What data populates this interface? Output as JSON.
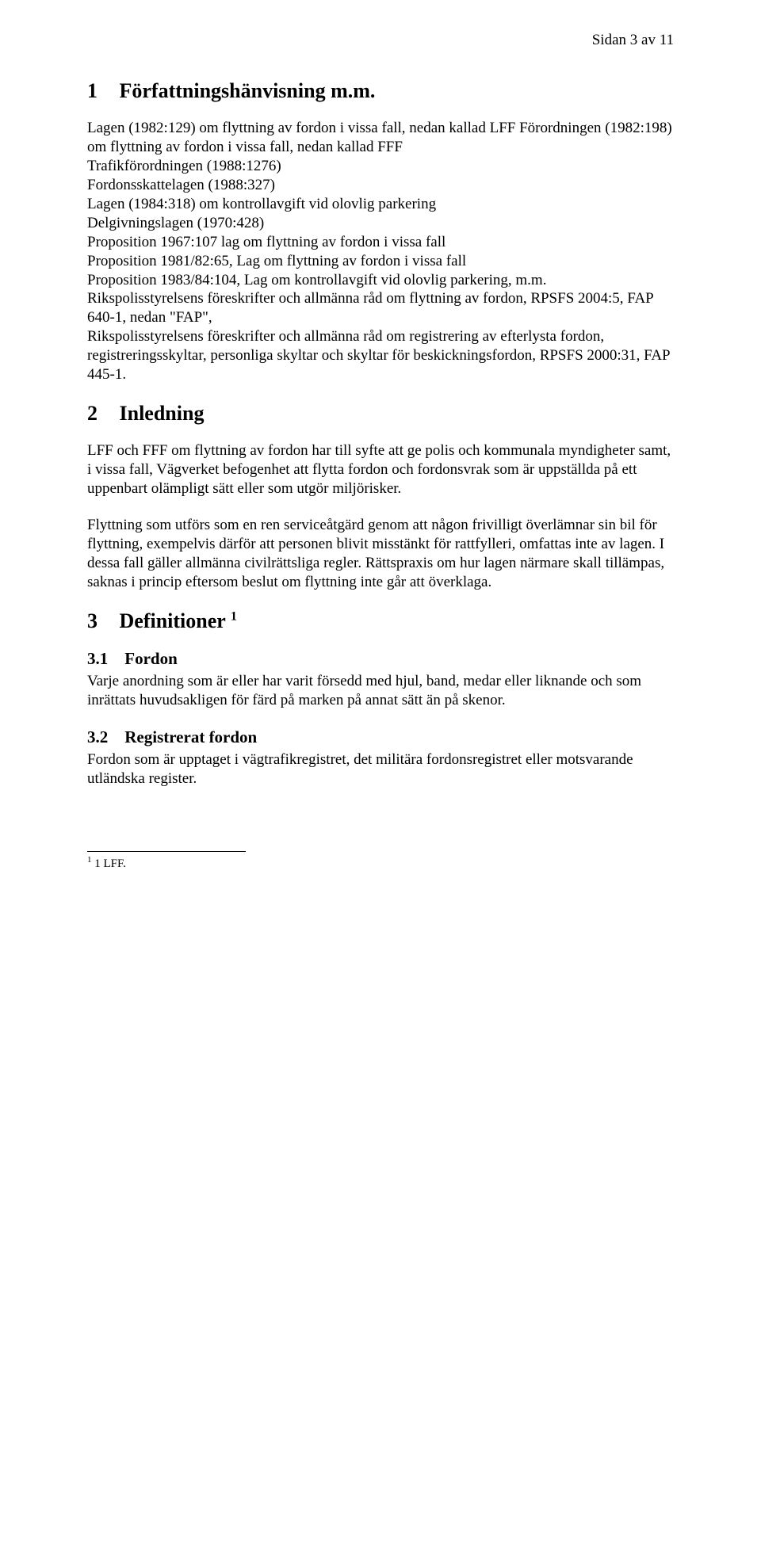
{
  "header": {
    "page_label": "Sidan 3 av 11"
  },
  "sec1": {
    "num": "1",
    "title": "Författningshänvisning m.m.",
    "body": "Lagen (1982:129) om flyttning av fordon i vissa fall, nedan kallad LFF Förordningen (1982:198) om flyttning av fordon i vissa fall, nedan kallad FFF\nTrafikförordningen (1988:1276)\nFordonsskattelagen (1988:327)\nLagen (1984:318) om kontrollavgift vid olovlig parkering\nDelgivningslagen (1970:428)\nProposition 1967:107 lag om flyttning av fordon i vissa fall\nProposition 1981/82:65, Lag om flyttning av fordon i vissa fall\nProposition 1983/84:104, Lag om kontrollavgift vid olovlig parkering, m.m.\nRikspolisstyrelsens föreskrifter och allmänna råd om flyttning av fordon, RPSFS 2004:5, FAP 640-1, nedan \"FAP\",\nRikspolisstyrelsens föreskrifter och allmänna råd om registrering av efterlysta fordon, registreringsskyltar, personliga skyltar och skyltar för beskickningsfordon, RPSFS 2000:31, FAP 445-1."
  },
  "sec2": {
    "num": "2",
    "title": "Inledning",
    "p1": "LFF och FFF om flyttning av fordon har till syfte att ge polis och kommunala myndigheter samt, i vissa fall, Vägverket befogenhet att flytta fordon och fordonsvrak som är uppställda på ett uppenbart olämpligt sätt eller som utgör miljörisker.",
    "p2": "Flyttning som utförs som en ren serviceåtgärd genom att någon frivilligt överlämnar sin bil för flyttning, exempelvis därför att personen blivit misstänkt för rattfylleri, omfattas inte av lagen. I dessa fall gäller allmänna civilrättsliga regler. Rättspraxis om hur lagen närmare skall tillämpas, saknas i princip eftersom beslut om flyttning inte går att överklaga."
  },
  "sec3": {
    "num": "3",
    "title": "Definitioner",
    "ref": "1",
    "sub1": {
      "num": "3.1",
      "title": "Fordon",
      "body": "Varje anordning som är eller har varit försedd med hjul, band, medar eller liknande och som inrättats huvudsakligen för färd på marken på annat sätt än på skenor."
    },
    "sub2": {
      "num": "3.2",
      "title": "Registrerat fordon",
      "body": "Fordon som är upptaget i vägtrafikregistret, det militära fordonsregistret eller motsvarande utländska register."
    }
  },
  "footnote": {
    "ref": "1",
    "text": " 1 LFF."
  }
}
